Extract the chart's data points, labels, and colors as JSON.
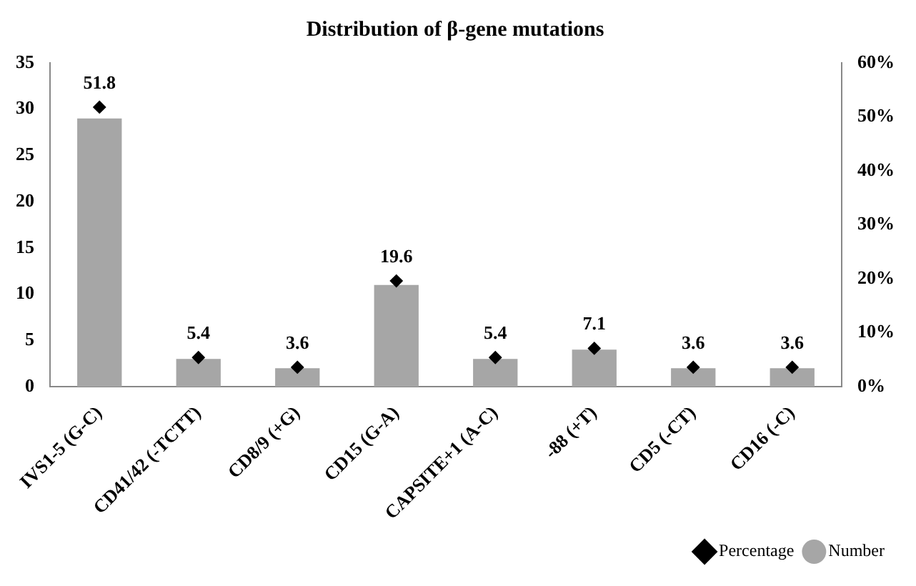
{
  "chart_data": {
    "type": "bar",
    "title": "Distribution of β-gene mutations",
    "categories": [
      "IVS1-5 (G-C)",
      "CD41/42 (-TCTT)",
      "CD8/9 (+G)",
      "CD15 (G-A)",
      "CAPSITE+1 (A-C)",
      "-88 (+T)",
      "CD5 (-CT)",
      "CD16 (-C)"
    ],
    "series": [
      {
        "name": "Number",
        "color": "#a6a6a6",
        "values": [
          29,
          3,
          2,
          11,
          3,
          4,
          2,
          2
        ]
      },
      {
        "name": "Percentage",
        "type": "scatter",
        "axis": "y2",
        "color": "#000000",
        "x": [
          "IVS1-5 (G-C)",
          "CD41/42 (-TCTT)",
          "CD8/9 (+G)",
          "CD15 (G-A)",
          "CAPSITE+1 (A-C)",
          "-88 (+T)",
          "CD5 (-CT)",
          "CD16 (-C)"
        ],
        "values": [
          51.8,
          5.4,
          3.6,
          19.6,
          5.4,
          7.1,
          3.6,
          3.6
        ],
        "value_labels": [
          "51.8",
          "5.4",
          "3.6",
          "19.6",
          "5.4",
          "7.1",
          "3.6",
          "3.6"
        ]
      }
    ],
    "ylim": [
      0,
      35
    ],
    "yticks": [
      0,
      5,
      10,
      15,
      20,
      25,
      30,
      35
    ],
    "y2lim": [
      0,
      60
    ],
    "y2ticks": [
      {
        "value": 0,
        "label": "0%"
      },
      {
        "value": 10,
        "label": "10%"
      },
      {
        "value": 20,
        "label": "20%"
      },
      {
        "value": 30,
        "label": "30%"
      },
      {
        "value": 40,
        "label": "40%"
      },
      {
        "value": 50,
        "label": "50%"
      },
      {
        "value": 60,
        "label": "60%"
      }
    ],
    "marker": "diamond",
    "grid": false,
    "legend": "bottom right"
  }
}
